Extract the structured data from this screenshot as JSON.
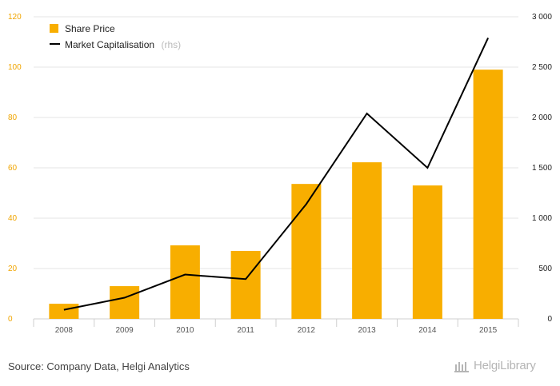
{
  "chart_data": {
    "type": "bar+line",
    "categories": [
      "2008",
      "2009",
      "2010",
      "2011",
      "2012",
      "2013",
      "2014",
      "2015"
    ],
    "series": [
      {
        "name": "Share Price",
        "axis": "left",
        "type": "bar",
        "values": [
          6,
          13,
          29.2,
          27,
          53.6,
          62.2,
          53,
          99
        ]
      },
      {
        "name": "Market Capitalisation",
        "axis": "right",
        "type": "line",
        "values": [
          90,
          210,
          440,
          395,
          1140,
          2040,
          1500,
          2790
        ]
      }
    ],
    "left_axis": {
      "min": 0,
      "max": 120,
      "ticks": [
        "0",
        "20",
        "40",
        "60",
        "80",
        "100",
        "120"
      ]
    },
    "right_axis": {
      "min": 0,
      "max": 3000,
      "ticks": [
        "0",
        "500",
        "1 000",
        "1 500",
        "2 000",
        "2 500",
        "3 000"
      ]
    },
    "legend": [
      {
        "label": "Share Price",
        "suffix": ""
      },
      {
        "label": "Market Capitalisation",
        "suffix": "(rhs)"
      }
    ],
    "colors": {
      "bar": "#f8ae00",
      "line": "#000000",
      "left_tick": "#f0a500",
      "right_tick": "#222222",
      "grid": "#e6e6e6"
    }
  },
  "footer": {
    "source": "Source: Company Data, Helgi Analytics",
    "brand": "HelgiLibrary"
  }
}
